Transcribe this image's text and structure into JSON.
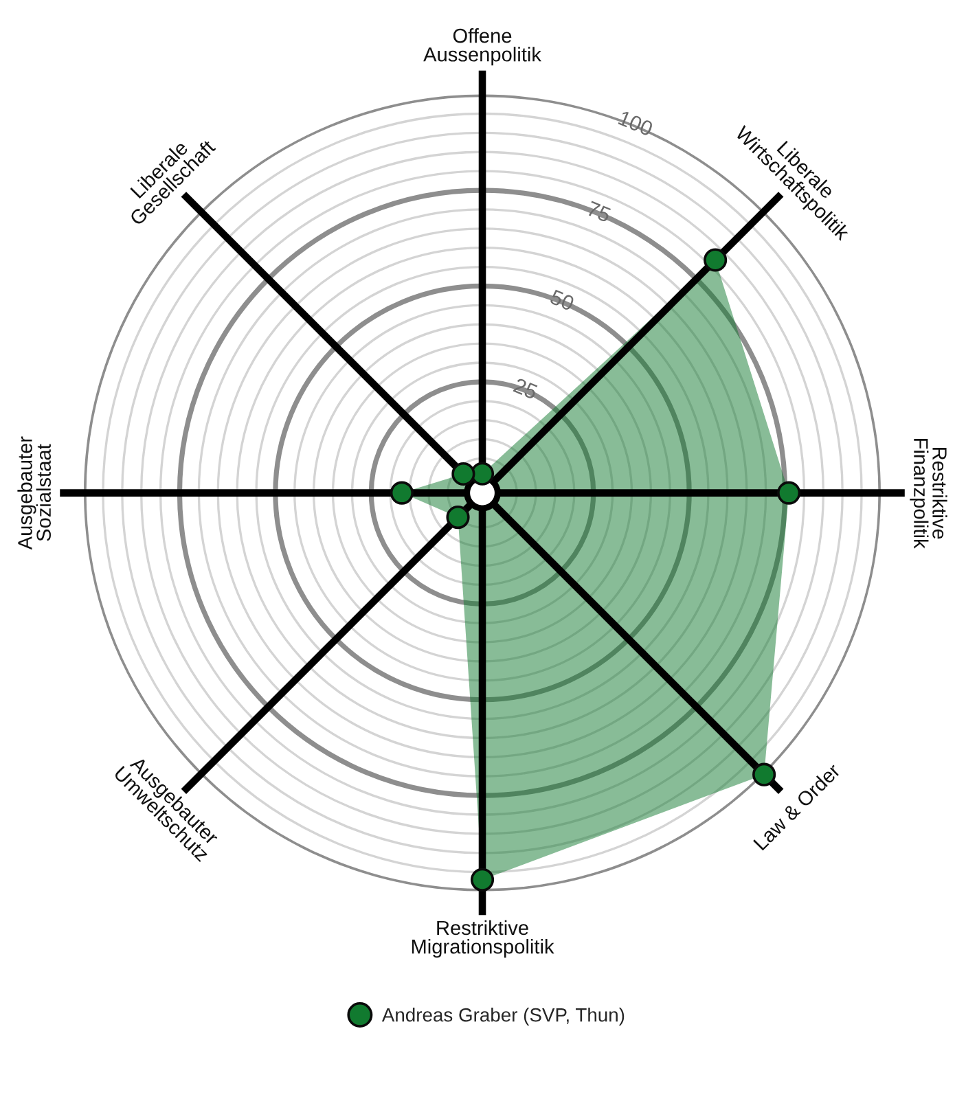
{
  "chart_data": {
    "type": "radar",
    "categories": [
      "Offene\nAussenpolitik",
      "Liberale\nWirtschaftspolitik",
      "Restriktive\nFinanzpolitik",
      "Law & Order",
      "Restriktive\nMigrationspolitik",
      "Ausgebauter\nUmweltschutz",
      "Ausgebauter\nSozialstaat",
      "Liberale\nGesellschaft"
    ],
    "series": [
      {
        "name": "Andreas Graber (SVP, Thun)",
        "color": "#117a2f",
        "values": [
          1,
          82,
          76,
          100,
          97,
          5,
          17,
          3
        ]
      }
    ],
    "ylim": [
      -4,
      100
    ],
    "yticks": [
      25,
      50,
      75,
      100
    ],
    "grid": true,
    "legend": "bottom",
    "marker": "circle"
  }
}
